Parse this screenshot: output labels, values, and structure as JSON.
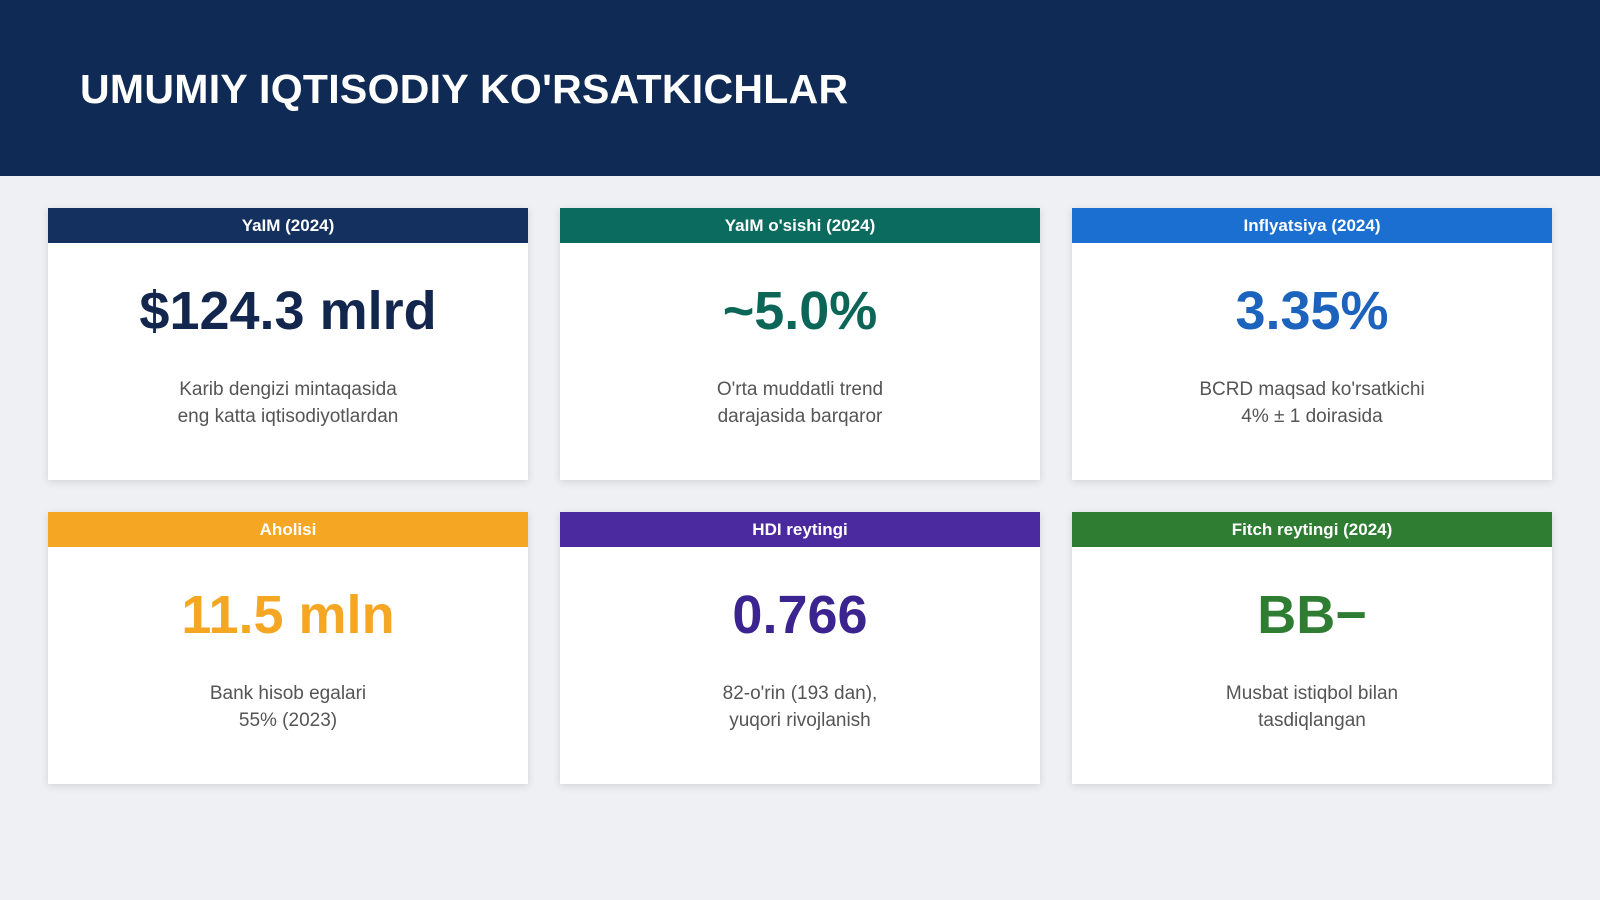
{
  "header": {
    "title": "UMUMIY IQTISODIY KO'RSATKICHLAR"
  },
  "cards": [
    {
      "label": "YaIM (2024)",
      "value": "$124.3 mlrd",
      "description": [
        "Karib dengizi mintaqasida",
        "eng katta iqtisodiyotlardan"
      ],
      "color": "#14305e",
      "value_color": "#13274e"
    },
    {
      "label": "YaIM o'sishi (2024)",
      "value": "~5.0%",
      "description": [
        "O'rta muddatli trend",
        "darajasida barqaror"
      ],
      "color": "#0b6b5e",
      "value_color": "#0c6658"
    },
    {
      "label": "Inflyatsiya (2024)",
      "value": "3.35%",
      "description": [
        "BCRD maqsad ko'rsatkichi",
        "4% ± 1 doirasida"
      ],
      "color": "#1b6fd1",
      "value_color": "#1c63bd"
    },
    {
      "label": "Aholisi",
      "value": "11.5 mln",
      "description": [
        "Bank hisob egalari",
        "55% (2023)"
      ],
      "color": "#f5a623",
      "value_color": "#f5a623"
    },
    {
      "label": "HDI reytingi",
      "value": "0.766",
      "description": [
        "82-o'rin (193 dan),",
        "yuqori rivojlanish"
      ],
      "color": "#4b2aa0",
      "value_color": "#3b248f"
    },
    {
      "label": "Fitch reytingi (2024)",
      "value": "BB−",
      "description": [
        "Musbat istiqbol bilan",
        "tasdiqlangan"
      ],
      "color": "#2e7d32",
      "value_color": "#2e7d32"
    }
  ]
}
